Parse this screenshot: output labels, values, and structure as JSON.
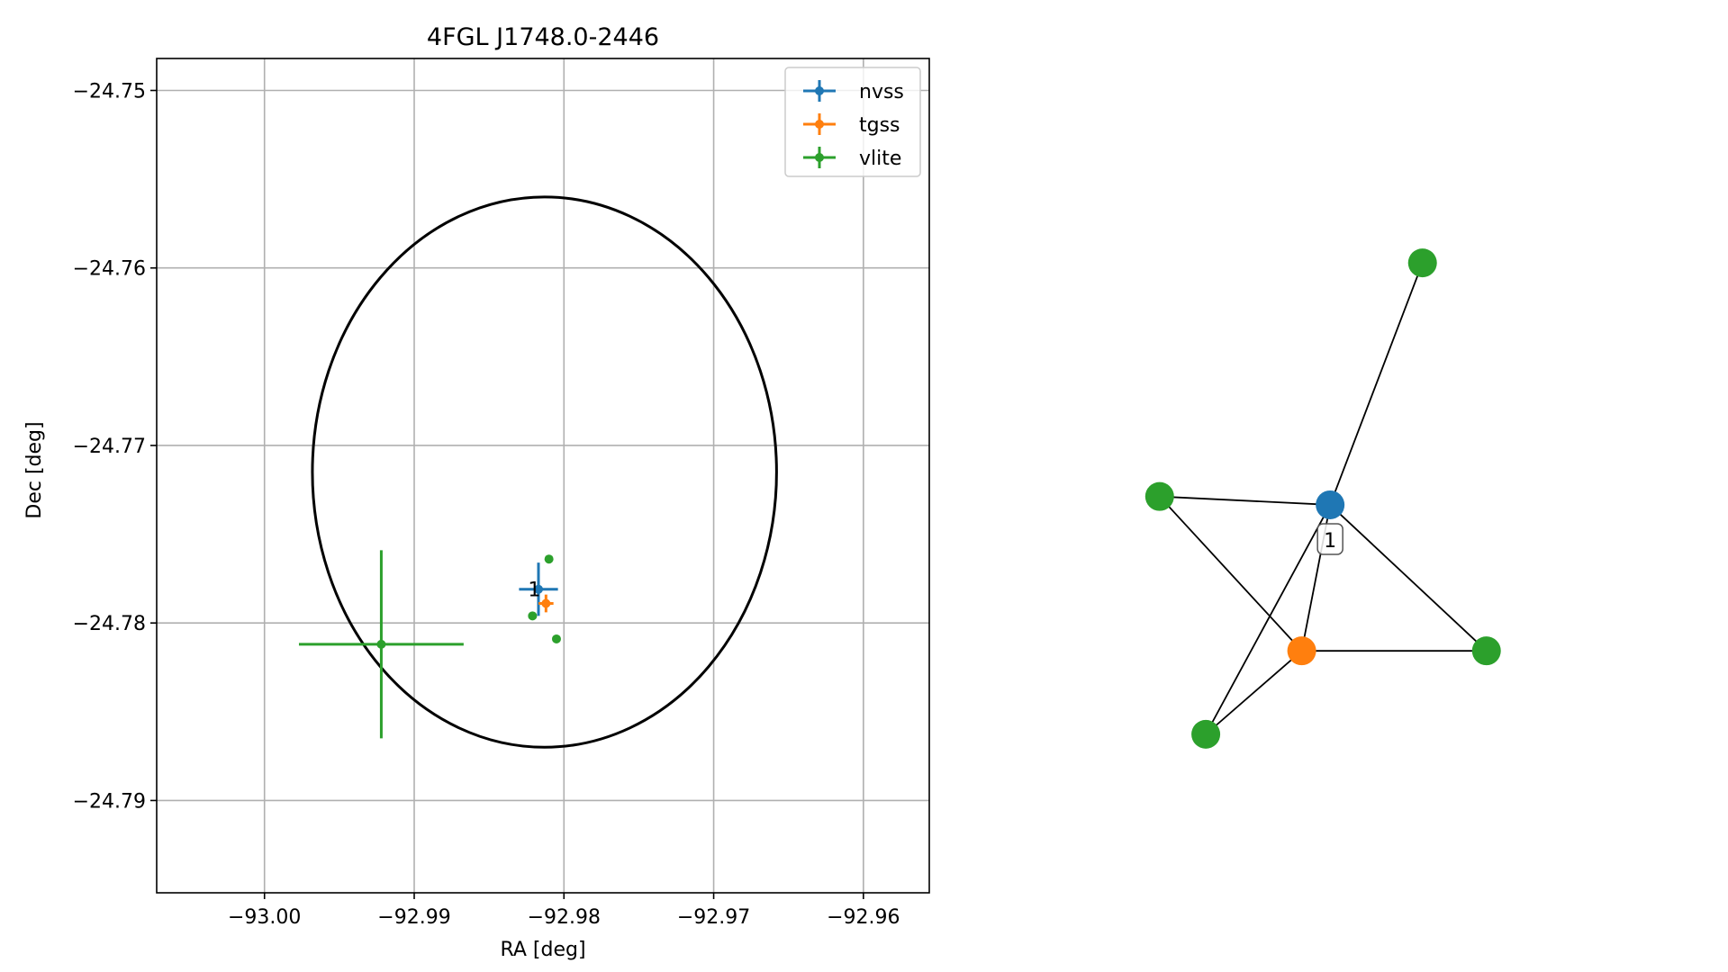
{
  "chart_data": [
    {
      "type": "scatter",
      "title": "4FGL J1748.0-2446",
      "xlabel": "RA [deg]",
      "ylabel": "Dec [deg]",
      "xlim": [
        -93.0072,
        -92.9556
      ],
      "ylim": [
        -24.7952,
        -24.7482
      ],
      "x_ticks": [
        -93.0,
        -92.99,
        -92.98,
        -92.97,
        -92.96
      ],
      "x_tick_labels": [
        "−93.00",
        "−92.99",
        "−92.98",
        "−92.97",
        "−92.96"
      ],
      "y_ticks": [
        -24.75,
        -24.76,
        -24.77,
        -24.78,
        -24.79
      ],
      "y_tick_labels": [
        "−24.75",
        "−24.76",
        "−24.77",
        "−24.78",
        "−24.79"
      ],
      "grid": true,
      "legend_position": "upper right",
      "circle": {
        "center": [
          -92.9813,
          -24.7715
        ],
        "radius": 0.0155,
        "color": "#000000"
      },
      "series": [
        {
          "name": "nvss",
          "color": "#1f77b4",
          "points": [
            {
              "x": -92.9817,
              "y": -24.7781,
              "xerr": 0.0013,
              "yerr": 0.0015
            }
          ]
        },
        {
          "name": "tgss",
          "color": "#ff7f0e",
          "points": [
            {
              "x": -92.9812,
              "y": -24.7789,
              "xerr": 0.0005,
              "yerr": 0.0005
            }
          ]
        },
        {
          "name": "vlite",
          "color": "#2ca02c",
          "points": [
            {
              "x": -92.9922,
              "y": -24.7812,
              "xerr": 0.0055,
              "yerr": 0.0053
            },
            {
              "x": -92.981,
              "y": -24.7764,
              "xerr": 0,
              "yerr": 0
            },
            {
              "x": -92.9821,
              "y": -24.7796,
              "xerr": 0,
              "yerr": 0
            },
            {
              "x": -92.9805,
              "y": -24.7809,
              "xerr": 0,
              "yerr": 0
            }
          ]
        }
      ],
      "annotations": [
        {
          "text": "1",
          "x": -92.9818,
          "y": -24.7781
        }
      ]
    },
    {
      "type": "network",
      "nodes": [
        {
          "id": "nvss",
          "color": "#1f77b4",
          "label": "1",
          "x": 0.44,
          "y": 0.465
        },
        {
          "id": "tgss",
          "color": "#ff7f0e",
          "x": 0.4,
          "y": 0.29
        },
        {
          "id": "vlite-a",
          "color": "#2ca02c",
          "x": 0.57,
          "y": 0.755
        },
        {
          "id": "vlite-b",
          "color": "#2ca02c",
          "x": 0.2,
          "y": 0.475
        },
        {
          "id": "vlite-c",
          "color": "#2ca02c",
          "x": 0.66,
          "y": 0.29
        },
        {
          "id": "vlite-d",
          "color": "#2ca02c",
          "x": 0.265,
          "y": 0.19
        }
      ],
      "edges": [
        [
          "nvss",
          "vlite-a"
        ],
        [
          "nvss",
          "vlite-b"
        ],
        [
          "nvss",
          "vlite-c"
        ],
        [
          "nvss",
          "vlite-d"
        ],
        [
          "nvss",
          "tgss"
        ],
        [
          "tgss",
          "vlite-b"
        ],
        [
          "tgss",
          "vlite-c"
        ],
        [
          "tgss",
          "vlite-d"
        ]
      ]
    }
  ]
}
